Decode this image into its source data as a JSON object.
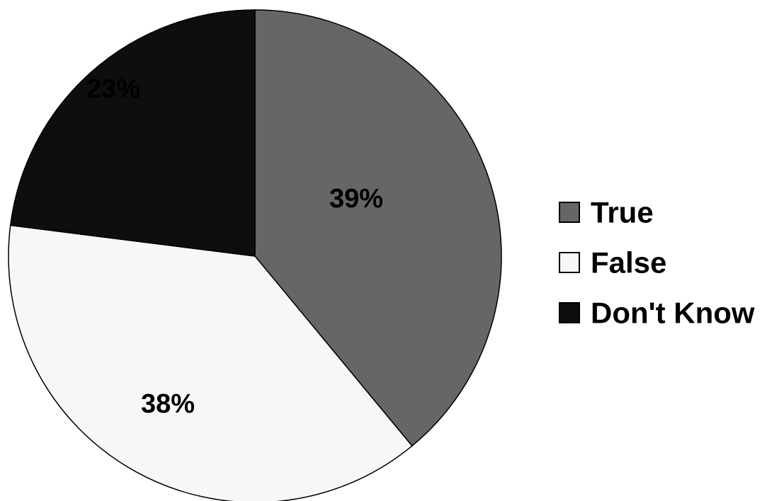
{
  "chart_data": {
    "type": "pie",
    "slices": [
      {
        "label": "True",
        "value": 39,
        "display": "39%",
        "color": "#666666"
      },
      {
        "label": "False",
        "value": 38,
        "display": "38%",
        "color": "#f7f7f7"
      },
      {
        "label": "Don't Know",
        "value": 23,
        "display": "23%",
        "color": "#0e0e0e"
      }
    ],
    "start_angle": "12 o'clock",
    "direction": "clockwise",
    "legend_position": "right"
  }
}
